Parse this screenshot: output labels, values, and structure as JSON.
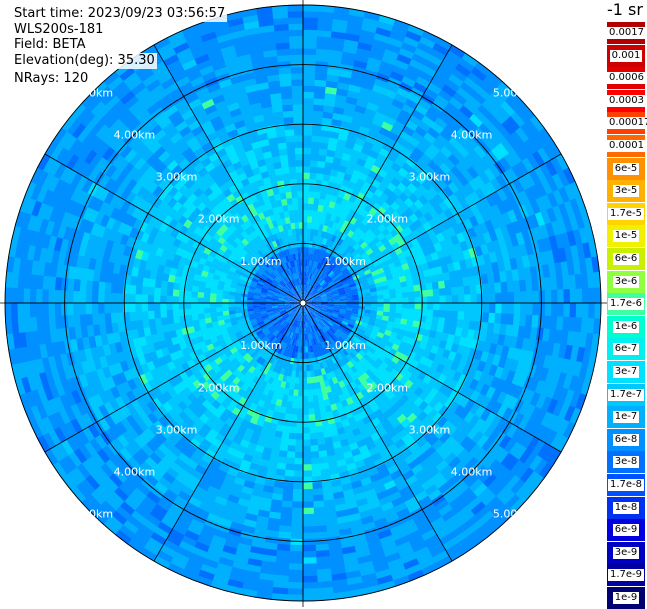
{
  "header": {
    "start_time": "Start time: 2023/09/23 03:56:57",
    "instrument": "WLS200s-181",
    "field": "Field: BETA",
    "elevation": "Elevation(deg): 35.30",
    "nrays": "NRays: 120"
  },
  "colorbar": {
    "unit_label": "-1 sr",
    "levels": [
      {
        "label": "0.0017",
        "color": "#b00000"
      },
      {
        "label": "0.001",
        "color": "#cc0000"
      },
      {
        "label": "0.0006",
        "color": "#e00000"
      },
      {
        "label": "0.0003",
        "color": "#ff0000"
      },
      {
        "label": "0.00017",
        "color": "#ff4000"
      },
      {
        "label": "0.0001",
        "color": "#ff6a00"
      },
      {
        "label": "6e-5",
        "color": "#ff9000"
      },
      {
        "label": "3e-5",
        "color": "#ffb000"
      },
      {
        "label": "1.7e-5",
        "color": "#ffd400"
      },
      {
        "label": "1e-5",
        "color": "#f0f000"
      },
      {
        "label": "6e-6",
        "color": "#c8f000"
      },
      {
        "label": "3e-6",
        "color": "#90ff40"
      },
      {
        "label": "1.7e-6",
        "color": "#40ffa0"
      },
      {
        "label": "1e-6",
        "color": "#00ffd0"
      },
      {
        "label": "6e-7",
        "color": "#00f0f0"
      },
      {
        "label": "3e-7",
        "color": "#00e0ff"
      },
      {
        "label": "1.7e-7",
        "color": "#00c8ff"
      },
      {
        "label": "1e-7",
        "color": "#00b0ff"
      },
      {
        "label": "6e-8",
        "color": "#0090ff"
      },
      {
        "label": "3e-8",
        "color": "#0070ff"
      },
      {
        "label": "1.7e-8",
        "color": "#0050ff"
      },
      {
        "label": "1e-8",
        "color": "#0030f0"
      },
      {
        "label": "6e-9",
        "color": "#0000e0"
      },
      {
        "label": "3e-9",
        "color": "#0000c0"
      },
      {
        "label": "1.7e-9",
        "color": "#0000a0"
      },
      {
        "label": "1e-9",
        "color": "#000070"
      }
    ]
  },
  "chart_data": {
    "type": "heatmap",
    "projection": "polar-ppi",
    "range_rings_km": [
      1,
      2,
      3,
      4,
      5
    ],
    "ring_labels": [
      "1.00km",
      "2.00km",
      "3.00km",
      "4.00km",
      "5.00km"
    ],
    "max_range_km": 5,
    "spoke_angles_deg": [
      0,
      30,
      60,
      90,
      120,
      150,
      180,
      210,
      240,
      270,
      300,
      330
    ],
    "nrays": 120,
    "value_description": "range-dependent backscatter: ~1e-7 to 1.7e-7 near 1-2km, ~6e-8 to 3e-8 beyond 3km, ~1.7e-8 near center"
  }
}
